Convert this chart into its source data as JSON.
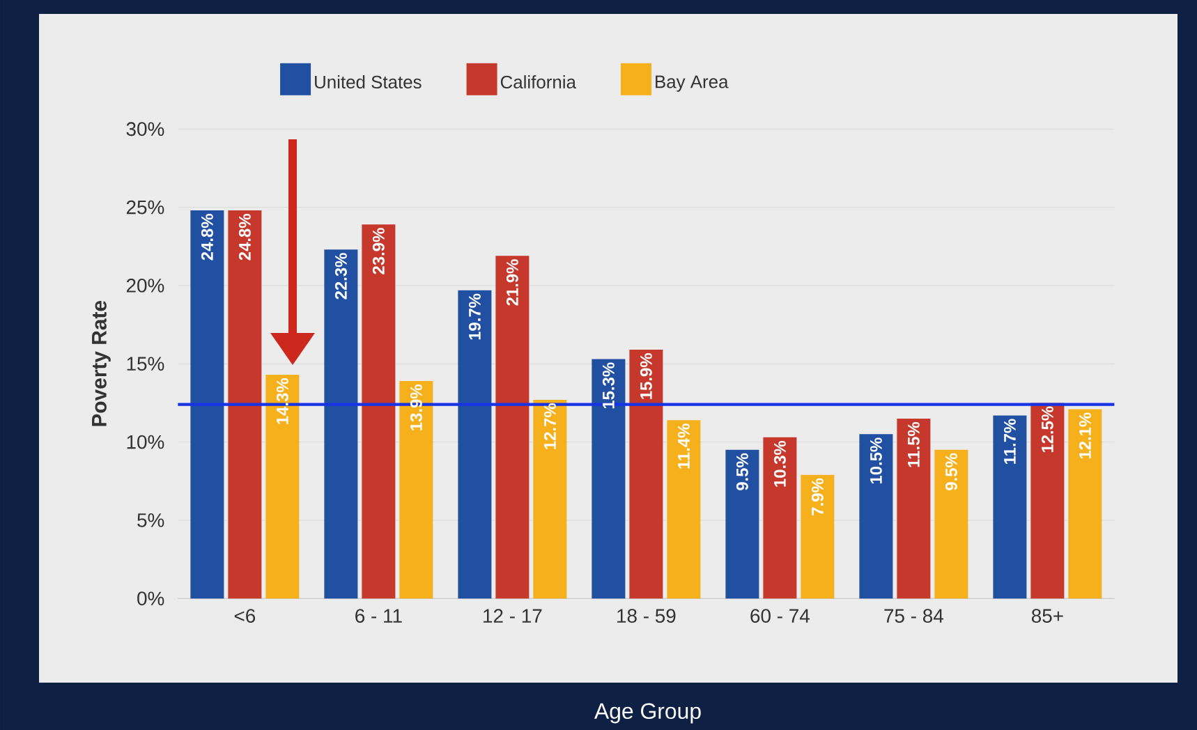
{
  "chart_data": {
    "type": "bar",
    "xlabel": "Age Group",
    "ylabel": "Poverty Rate",
    "categories": [
      "<6",
      "6 - 11",
      "12 - 17",
      "18 - 59",
      "60 - 74",
      "75 - 84",
      "85+"
    ],
    "series": [
      {
        "name": "United States",
        "color": "#2150a2",
        "values": [
          24.8,
          22.3,
          19.7,
          15.3,
          9.5,
          10.5,
          11.7
        ],
        "value_labels": [
          "24.8%",
          "22.3%",
          "19.7%",
          "15.3%",
          "9.5%",
          "10.5%",
          "11.7%"
        ]
      },
      {
        "name": "California",
        "color": "#c6372c",
        "values": [
          24.8,
          23.9,
          21.9,
          15.9,
          10.3,
          11.5,
          12.5
        ],
        "value_labels": [
          "24.8%",
          "23.9%",
          "21.9%",
          "15.9%",
          "10.3%",
          "11.5%",
          "12.5%"
        ]
      },
      {
        "name": "Bay Area",
        "color": "#f6b01c",
        "values": [
          14.3,
          13.9,
          12.7,
          11.4,
          7.9,
          9.5,
          12.1
        ],
        "value_labels": [
          "14.3%",
          "13.9%",
          "12.7%",
          "11.4%",
          "7.9%",
          "9.5%",
          "12.1%"
        ]
      }
    ],
    "ylim": [
      0,
      30
    ],
    "yticks": [
      {
        "value": 0,
        "label": "0%"
      },
      {
        "value": 5,
        "label": "5%"
      },
      {
        "value": 10,
        "label": "10%"
      },
      {
        "value": 15,
        "label": "15%"
      },
      {
        "value": 20,
        "label": "20%"
      },
      {
        "value": 25,
        "label": "25%"
      },
      {
        "value": 30,
        "label": "30%"
      }
    ],
    "ref_lines": [
      {
        "axis": "y",
        "value": 12.4,
        "color": "#1733e6"
      }
    ],
    "grid": "y",
    "legend": "top"
  }
}
